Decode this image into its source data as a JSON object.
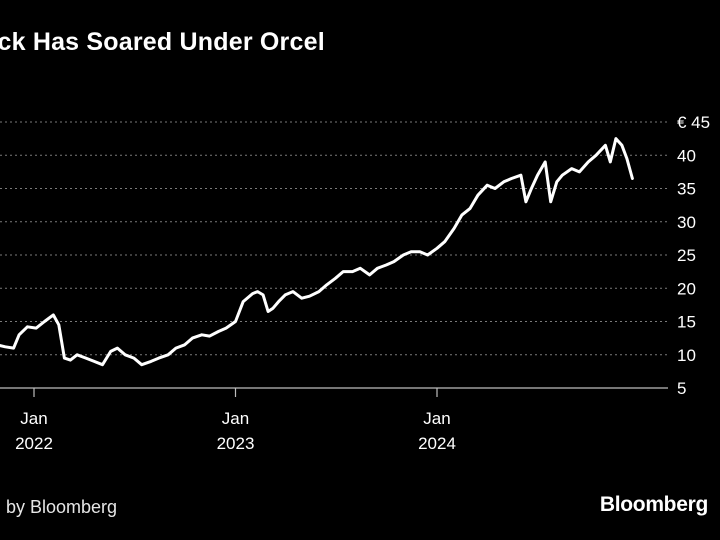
{
  "title": "ock Has Soared Under Orcel",
  "source": "by Bloomberg",
  "brand": "Bloomberg",
  "colors": {
    "background": "#000000",
    "line": "#ffffff",
    "grid": "#7a7a7a"
  },
  "chart_data": {
    "type": "line",
    "title": "ock Has Soared Under Orcel",
    "ylim": [
      5,
      45
    ],
    "y_ticks": [
      {
        "value": 45,
        "label": "€ 45"
      },
      {
        "value": 40,
        "label": "40"
      },
      {
        "value": 35,
        "label": "35"
      },
      {
        "value": 30,
        "label": "30"
      },
      {
        "value": 25,
        "label": "25"
      },
      {
        "value": 20,
        "label": "20"
      },
      {
        "value": 15,
        "label": "15"
      },
      {
        "value": 10,
        "label": "10"
      },
      {
        "value": 5,
        "label": "5"
      }
    ],
    "x_ticks": [
      {
        "date": "2022-01-01",
        "month": "Jan",
        "year": "2022"
      },
      {
        "date": "2023-01-01",
        "month": "Jan",
        "year": "2023"
      },
      {
        "date": "2024-01-01",
        "month": "Jan",
        "year": "2024"
      }
    ],
    "xlim": [
      "2021-10-25",
      "2024-12-20"
    ],
    "grid": true,
    "y_axis_side": "right",
    "series": [
      {
        "x": [
          "2021-10-25",
          "2021-11-10",
          "2021-11-25",
          "2021-12-05",
          "2021-12-20",
          "2022-01-05",
          "2022-01-20",
          "2022-02-05",
          "2022-02-15",
          "2022-02-25",
          "2022-03-08",
          "2022-03-20",
          "2022-04-05",
          "2022-04-20",
          "2022-05-05",
          "2022-05-20",
          "2022-06-01",
          "2022-06-15",
          "2022-07-01",
          "2022-07-15",
          "2022-08-01",
          "2022-08-15",
          "2022-09-01",
          "2022-09-15",
          "2022-10-01",
          "2022-10-15",
          "2022-11-01",
          "2022-11-15",
          "2022-12-01",
          "2022-12-15",
          "2023-01-01",
          "2023-01-15",
          "2023-02-01",
          "2023-02-10",
          "2023-02-20",
          "2023-03-01",
          "2023-03-10",
          "2023-03-20",
          "2023-04-01",
          "2023-04-15",
          "2023-05-01",
          "2023-05-15",
          "2023-06-01",
          "2023-06-15",
          "2023-07-01",
          "2023-07-15",
          "2023-08-01",
          "2023-08-15",
          "2023-09-01",
          "2023-09-15",
          "2023-10-01",
          "2023-10-15",
          "2023-11-01",
          "2023-11-15",
          "2023-12-01",
          "2023-12-15",
          "2024-01-01",
          "2024-01-15",
          "2024-02-01",
          "2024-02-15",
          "2024-03-01",
          "2024-03-15",
          "2024-04-01",
          "2024-04-15",
          "2024-05-01",
          "2024-05-15",
          "2024-06-01",
          "2024-06-10",
          "2024-06-20",
          "2024-07-01",
          "2024-07-15",
          "2024-07-25",
          "2024-08-05",
          "2024-08-15",
          "2024-09-01",
          "2024-09-15",
          "2024-10-01",
          "2024-10-15",
          "2024-11-01",
          "2024-11-10",
          "2024-11-20",
          "2024-12-01",
          "2024-12-10",
          "2024-12-20"
        ],
        "values": [
          11.5,
          11.2,
          11.0,
          13.0,
          14.2,
          14.0,
          15.0,
          16.0,
          14.5,
          9.5,
          9.2,
          10.0,
          9.5,
          9.0,
          8.5,
          10.5,
          11.0,
          10.0,
          9.5,
          8.5,
          9.0,
          9.5,
          10.0,
          11.0,
          11.5,
          12.5,
          13.0,
          12.8,
          13.5,
          14.0,
          15.0,
          18.0,
          19.2,
          19.5,
          19.0,
          16.5,
          17.0,
          18.0,
          19.0,
          19.5,
          18.5,
          18.8,
          19.5,
          20.5,
          21.5,
          22.5,
          22.5,
          23.0,
          22.0,
          23.0,
          23.5,
          24.0,
          25.0,
          25.5,
          25.5,
          25.0,
          26.0,
          27.0,
          29.0,
          31.0,
          32.0,
          34.0,
          35.5,
          35.0,
          36.0,
          36.5,
          37.0,
          33.0,
          35.0,
          37.0,
          39.0,
          33.0,
          36.0,
          37.0,
          38.0,
          37.5,
          39.0,
          40.0,
          41.5,
          39.0,
          42.5,
          41.5,
          39.5,
          36.5
        ]
      }
    ]
  }
}
